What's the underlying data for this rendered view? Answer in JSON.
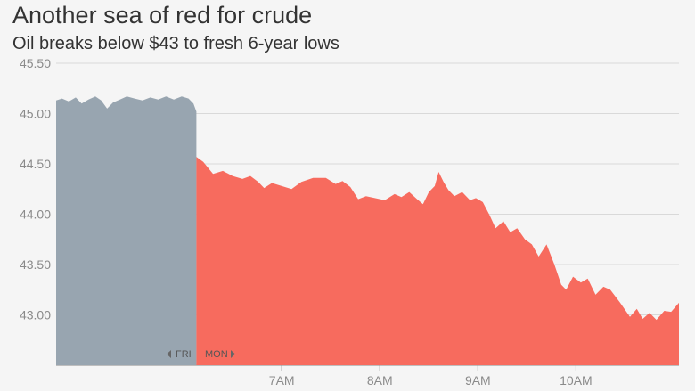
{
  "header": {
    "title": "Another sea of red for crude",
    "subtitle": "Oil breaks below $43 to fresh 6-year lows"
  },
  "colors": {
    "previous_session": "#98a5b0",
    "current_session": "#f76b5e",
    "grid": "#d9d9d9",
    "background": "#f5f5f5"
  },
  "chart_data": {
    "type": "area",
    "title": "Another sea of red for crude",
    "subtitle": "Oil breaks below $43 to fresh 6-year lows",
    "ylim": [
      42.5,
      45.5
    ],
    "y_ticks": [
      43.0,
      43.5,
      44.0,
      44.5,
      45.0,
      45.5
    ],
    "y_tick_labels": [
      "43.00",
      "43.50",
      "44.00",
      "44.50",
      "45.00",
      "45.50"
    ],
    "x_ticks": [
      7,
      8,
      9,
      10
    ],
    "x_tick_labels": [
      "7AM",
      "8AM",
      "9AM",
      "10AM"
    ],
    "xlim": [
      4.7,
      11.05
    ],
    "grid": true,
    "day_labels": {
      "previous": "FRI",
      "current": "MON"
    },
    "series": [
      {
        "name": "FRI",
        "color": "#98a5b0",
        "points": [
          [
            4.7,
            45.13
          ],
          [
            4.76,
            45.15
          ],
          [
            4.83,
            45.12
          ],
          [
            4.9,
            45.16
          ],
          [
            4.96,
            45.1
          ],
          [
            5.03,
            45.14
          ],
          [
            5.1,
            45.17
          ],
          [
            5.16,
            45.13
          ],
          [
            5.22,
            45.05
          ],
          [
            5.28,
            45.11
          ],
          [
            5.35,
            45.14
          ],
          [
            5.42,
            45.17
          ],
          [
            5.5,
            45.15
          ],
          [
            5.58,
            45.13
          ],
          [
            5.66,
            45.16
          ],
          [
            5.74,
            45.14
          ],
          [
            5.82,
            45.17
          ],
          [
            5.9,
            45.14
          ],
          [
            5.98,
            45.17
          ],
          [
            6.05,
            45.15
          ],
          [
            6.1,
            45.1
          ],
          [
            6.13,
            45.02
          ]
        ]
      },
      {
        "name": "MON",
        "color": "#f76b5e",
        "points": [
          [
            6.13,
            44.57
          ],
          [
            6.2,
            44.52
          ],
          [
            6.3,
            44.4
          ],
          [
            6.4,
            44.43
          ],
          [
            6.5,
            44.38
          ],
          [
            6.6,
            44.35
          ],
          [
            6.68,
            44.38
          ],
          [
            6.76,
            44.32
          ],
          [
            6.82,
            44.26
          ],
          [
            6.9,
            44.31
          ],
          [
            7.0,
            44.28
          ],
          [
            7.1,
            44.25
          ],
          [
            7.2,
            44.32
          ],
          [
            7.32,
            44.36
          ],
          [
            7.45,
            44.36
          ],
          [
            7.55,
            44.3
          ],
          [
            7.62,
            44.33
          ],
          [
            7.7,
            44.27
          ],
          [
            7.78,
            44.15
          ],
          [
            7.86,
            44.18
          ],
          [
            7.95,
            44.16
          ],
          [
            8.05,
            44.14
          ],
          [
            8.15,
            44.2
          ],
          [
            8.22,
            44.17
          ],
          [
            8.3,
            44.22
          ],
          [
            8.38,
            44.15
          ],
          [
            8.44,
            44.1
          ],
          [
            8.5,
            44.22
          ],
          [
            8.56,
            44.28
          ],
          [
            8.6,
            44.42
          ],
          [
            8.65,
            44.32
          ],
          [
            8.7,
            44.24
          ],
          [
            8.76,
            44.18
          ],
          [
            8.84,
            44.22
          ],
          [
            8.92,
            44.14
          ],
          [
            8.98,
            44.16
          ],
          [
            9.05,
            44.12
          ],
          [
            9.12,
            43.99
          ],
          [
            9.18,
            43.86
          ],
          [
            9.26,
            43.93
          ],
          [
            9.33,
            43.82
          ],
          [
            9.4,
            43.86
          ],
          [
            9.48,
            43.75
          ],
          [
            9.55,
            43.7
          ],
          [
            9.62,
            43.58
          ],
          [
            9.7,
            43.7
          ],
          [
            9.78,
            43.5
          ],
          [
            9.85,
            43.3
          ],
          [
            9.9,
            43.25
          ],
          [
            9.97,
            43.38
          ],
          [
            10.05,
            43.32
          ],
          [
            10.12,
            43.36
          ],
          [
            10.2,
            43.2
          ],
          [
            10.28,
            43.28
          ],
          [
            10.35,
            43.25
          ],
          [
            10.45,
            43.12
          ],
          [
            10.55,
            42.98
          ],
          [
            10.62,
            43.06
          ],
          [
            10.68,
            42.96
          ],
          [
            10.75,
            43.02
          ],
          [
            10.82,
            42.95
          ],
          [
            10.9,
            43.04
          ],
          [
            10.97,
            43.03
          ],
          [
            11.05,
            43.12
          ]
        ]
      }
    ]
  }
}
